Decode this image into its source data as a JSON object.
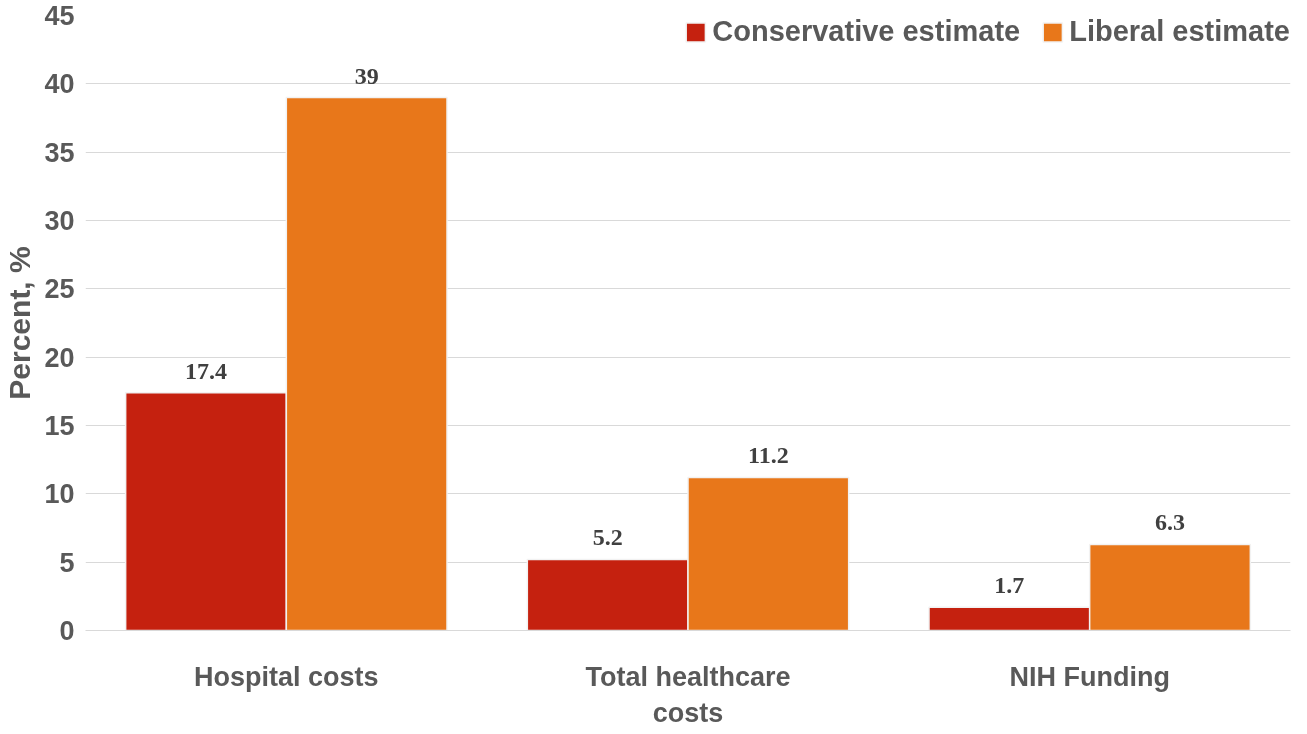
{
  "chart_data": {
    "type": "bar",
    "ylabel": "Percent, %",
    "categories": [
      "Hospital costs",
      "Total healthcare costs",
      "NIH Funding"
    ],
    "series": [
      {
        "name": "Conservative estimate",
        "color": "#c5210f",
        "values": [
          17.4,
          5.2,
          1.7
        ]
      },
      {
        "name": "Liberal estimate",
        "color": "#e8771a",
        "values": [
          39,
          11.2,
          6.3
        ]
      }
    ],
    "ylim": [
      0,
      45
    ],
    "yticks": [
      0,
      5,
      10,
      15,
      20,
      25,
      30,
      35,
      40,
      45
    ],
    "grid": "y",
    "legend": "top right",
    "data_labels": true
  }
}
